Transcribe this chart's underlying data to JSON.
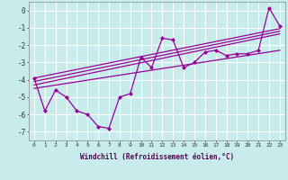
{
  "xlabel": "Windchill (Refroidissement éolien,°C)",
  "bg_color": "#c8ecec",
  "grid_color": "#ffffff",
  "line_color": "#990099",
  "xlim": [
    -0.5,
    23.5
  ],
  "ylim": [
    -7.5,
    0.5
  ],
  "yticks": [
    0,
    -1,
    -2,
    -3,
    -4,
    -5,
    -6,
    -7
  ],
  "xticks": [
    0,
    1,
    2,
    3,
    4,
    5,
    6,
    7,
    8,
    9,
    10,
    11,
    12,
    13,
    14,
    15,
    16,
    17,
    18,
    19,
    20,
    21,
    22,
    23
  ],
  "zigzag_x": [
    0,
    1,
    2,
    3,
    4,
    5,
    6,
    7,
    8,
    9,
    10,
    11,
    12,
    13,
    14,
    15,
    16,
    17,
    18,
    19,
    20,
    21,
    22,
    23
  ],
  "zigzag_y": [
    -3.9,
    -5.8,
    -4.6,
    -5.0,
    -5.8,
    -6.0,
    -6.7,
    -6.8,
    -5.0,
    -4.8,
    -2.7,
    -3.3,
    -1.6,
    -1.7,
    -3.3,
    -3.0,
    -2.4,
    -2.3,
    -2.6,
    -2.5,
    -2.5,
    -2.3,
    0.15,
    -0.9
  ],
  "trend_lines": [
    {
      "x0": 0,
      "y0": -3.9,
      "x1": 23,
      "y1": -1.05
    },
    {
      "x0": 0,
      "y0": -4.1,
      "x1": 23,
      "y1": -1.2
    },
    {
      "x0": 0,
      "y0": -4.3,
      "x1": 23,
      "y1": -1.35
    },
    {
      "x0": 0,
      "y0": -4.5,
      "x1": 23,
      "y1": -2.3
    }
  ]
}
